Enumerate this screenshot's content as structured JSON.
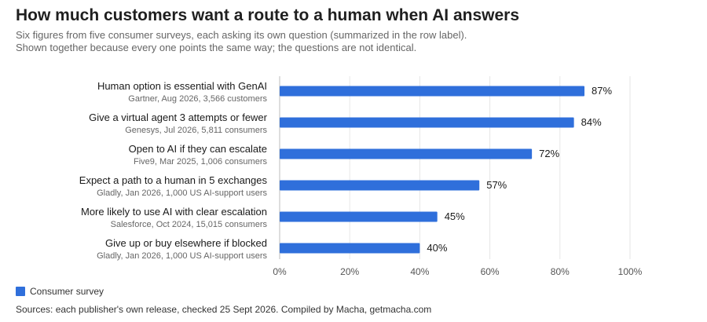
{
  "title": "How much customers want a route to a human when AI answers",
  "subtitle_lines": [
    "Six figures from five consumer surveys, each asking its own question (summarized in the row label).",
    "Shown together because every one points the same way; the questions are not identical."
  ],
  "legend": {
    "label": "Consumer survey",
    "color": "#2f6fdb"
  },
  "source": "Sources: each publisher's own release, checked 25 Sept 2026. Compiled by Macha, getmacha.com",
  "chart_data": {
    "type": "bar",
    "orientation": "horizontal",
    "categories": [
      "Human option is essential with GenAI",
      "Give a virtual agent 3 attempts or fewer",
      "Open to AI if they can escalate",
      "Expect a path to a human in 5 exchanges",
      "More likely to use AI with clear escalation",
      "Give up or buy elsewhere if blocked"
    ],
    "category_notes": [
      "Gartner, Aug 2026, 3,566 customers",
      "Genesys, Jul 2026, 5,811 consumers",
      "Five9, Mar 2025, 1,006 consumers",
      "Gladly, Jan 2026, 1,000 US AI-support users",
      "Salesforce, Oct 2024, 15,015 consumers",
      "Gladly, Jan 2026, 1,000 US AI-support users"
    ],
    "series": [
      {
        "name": "Consumer survey",
        "values": [
          87,
          84,
          72,
          57,
          45,
          40
        ]
      }
    ],
    "data_labels": [
      "87%",
      "84%",
      "72%",
      "57%",
      "45%",
      "40%"
    ],
    "xlim": [
      0,
      100
    ],
    "x_ticks": [
      0,
      20,
      40,
      60,
      80,
      100
    ],
    "x_tick_labels": [
      "0%",
      "20%",
      "40%",
      "60%",
      "80%",
      "100%"
    ],
    "grid": true,
    "legend_position": "bottom-left",
    "bar_color": "#2f6fdb"
  }
}
